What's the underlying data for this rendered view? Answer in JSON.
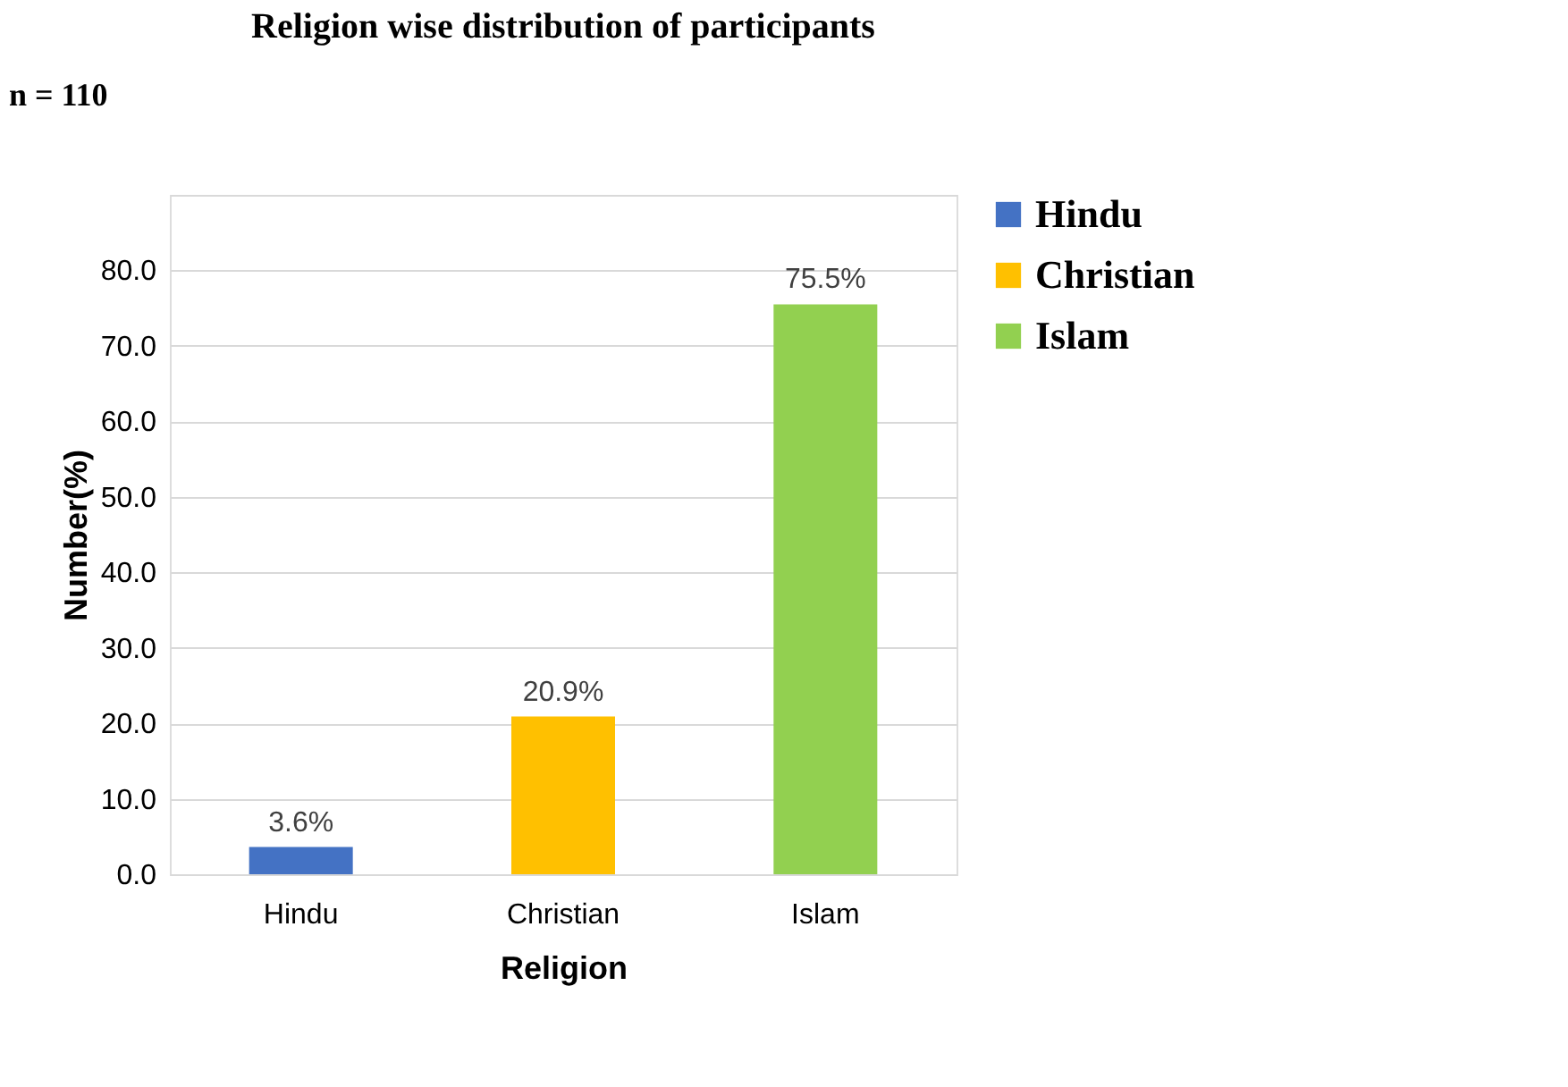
{
  "chart_data": {
    "type": "bar",
    "title": "Religion wise distribution of participants",
    "xlabel": "Religion",
    "ylabel": "Number(%)",
    "categories": [
      "Hindu",
      "Christian",
      "Islam"
    ],
    "series": [
      {
        "name": "Hindu",
        "color": "#4472c4",
        "values": [
          3.6,
          null,
          null
        ],
        "value_labels": [
          "3.6%",
          null,
          null
        ]
      },
      {
        "name": "Christian",
        "color": "#ffc000",
        "values": [
          null,
          20.9,
          null
        ],
        "value_labels": [
          null,
          "20.9%",
          null
        ]
      },
      {
        "name": "Islam",
        "color": "#92d050",
        "values": [
          null,
          null,
          75.5
        ],
        "value_labels": [
          null,
          null,
          "75.5%"
        ]
      }
    ],
    "ylim": [
      0,
      90
    ],
    "yticks": [
      {
        "value": 0,
        "label": "0.0"
      },
      {
        "value": 10,
        "label": "10.0"
      },
      {
        "value": 20,
        "label": "20.0"
      },
      {
        "value": 30,
        "label": "30.0"
      },
      {
        "value": 40,
        "label": "40.0"
      },
      {
        "value": 50,
        "label": "50.0"
      },
      {
        "value": 60,
        "label": "60.0"
      },
      {
        "value": 70,
        "label": "70.0"
      },
      {
        "value": 80,
        "label": "80.0"
      },
      {
        "value": 90,
        "label": null
      }
    ],
    "grid": "y",
    "legend": "right",
    "annotations": [
      "n = 110"
    ]
  }
}
